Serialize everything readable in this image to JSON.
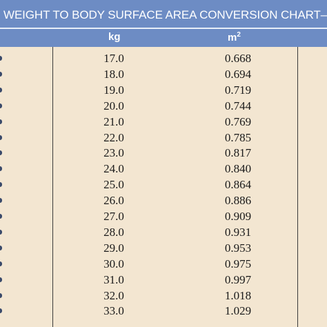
{
  "title": "WEIGHT TO BODY SURFACE AREA CONVERSION CHART—DOGS",
  "headers": {
    "kg": "kg",
    "m2_base": "m",
    "m2_sup": "2"
  },
  "rows": [
    {
      "kg": "17.0",
      "m2": "0.668"
    },
    {
      "kg": "18.0",
      "m2": "0.694"
    },
    {
      "kg": "19.0",
      "m2": "0.719"
    },
    {
      "kg": "20.0",
      "m2": "0.744"
    },
    {
      "kg": "21.0",
      "m2": "0.769"
    },
    {
      "kg": "22.0",
      "m2": "0.785"
    },
    {
      "kg": "23.0",
      "m2": "0.817"
    },
    {
      "kg": "24.0",
      "m2": "0.840"
    },
    {
      "kg": "25.0",
      "m2": "0.864"
    },
    {
      "kg": "26.0",
      "m2": "0.886"
    },
    {
      "kg": "27.0",
      "m2": "0.909"
    },
    {
      "kg": "28.0",
      "m2": "0.931"
    },
    {
      "kg": "29.0",
      "m2": "0.953"
    },
    {
      "kg": "30.0",
      "m2": "0.975"
    },
    {
      "kg": "31.0",
      "m2": "0.997"
    },
    {
      "kg": "32.0",
      "m2": "1.018"
    },
    {
      "kg": "33.0",
      "m2": "1.029"
    }
  ],
  "colors": {
    "header_bg": "#6d8cc4",
    "body_bg": "#f3e6d1",
    "text": "#1a1a1a"
  }
}
